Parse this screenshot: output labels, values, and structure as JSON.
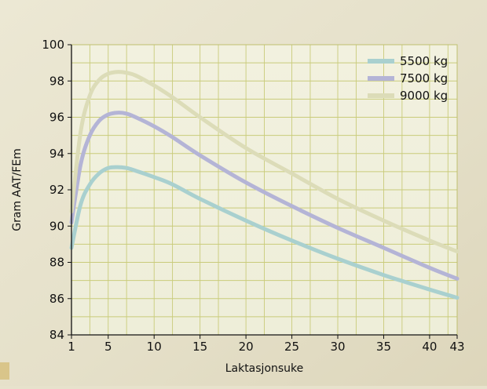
{
  "chart_data": {
    "type": "line",
    "xlabel": "Laktasjonsuke",
    "ylabel": "Gram AAT/FEm",
    "ylim": [
      84,
      100
    ],
    "xlim": [
      1,
      43
    ],
    "x_ticks": [
      "1",
      "5",
      "10",
      "15",
      "20",
      "25",
      "30",
      "35",
      "40",
      "43"
    ],
    "y_ticks": [
      "84",
      "86",
      "88",
      "90",
      "92",
      "94",
      "96",
      "98",
      "100"
    ],
    "grid": true,
    "legend_position": "top-right",
    "series": [
      {
        "name": "5500 kg",
        "color": "#a9d0cf",
        "x": [
          1,
          2,
          3,
          4,
          5,
          6,
          7,
          8,
          10,
          12,
          15,
          20,
          25,
          30,
          35,
          40,
          43
        ],
        "y": [
          88.8,
          91.2,
          92.3,
          92.9,
          93.2,
          93.25,
          93.2,
          93.05,
          92.7,
          92.3,
          91.5,
          90.3,
          89.2,
          88.2,
          87.3,
          86.5,
          86.05
        ]
      },
      {
        "name": "7500 kg",
        "color": "#b4b4d6",
        "x": [
          1,
          2,
          3,
          4,
          5,
          6,
          7,
          8,
          10,
          12,
          15,
          20,
          25,
          30,
          35,
          40,
          43
        ],
        "y": [
          90.2,
          93.4,
          95.0,
          95.8,
          96.15,
          96.25,
          96.2,
          96.0,
          95.5,
          94.9,
          93.9,
          92.4,
          91.1,
          89.9,
          88.8,
          87.7,
          87.1
        ]
      },
      {
        "name": "9000 kg",
        "color": "#dcdcb8",
        "x": [
          1,
          2,
          3,
          4,
          5,
          6,
          7,
          8,
          10,
          12,
          15,
          20,
          25,
          30,
          35,
          40,
          43
        ],
        "y": [
          90.8,
          95.2,
          97.2,
          98.05,
          98.4,
          98.5,
          98.45,
          98.3,
          97.75,
          97.1,
          96.0,
          94.3,
          92.9,
          91.5,
          90.3,
          89.2,
          88.6
        ]
      }
    ]
  }
}
